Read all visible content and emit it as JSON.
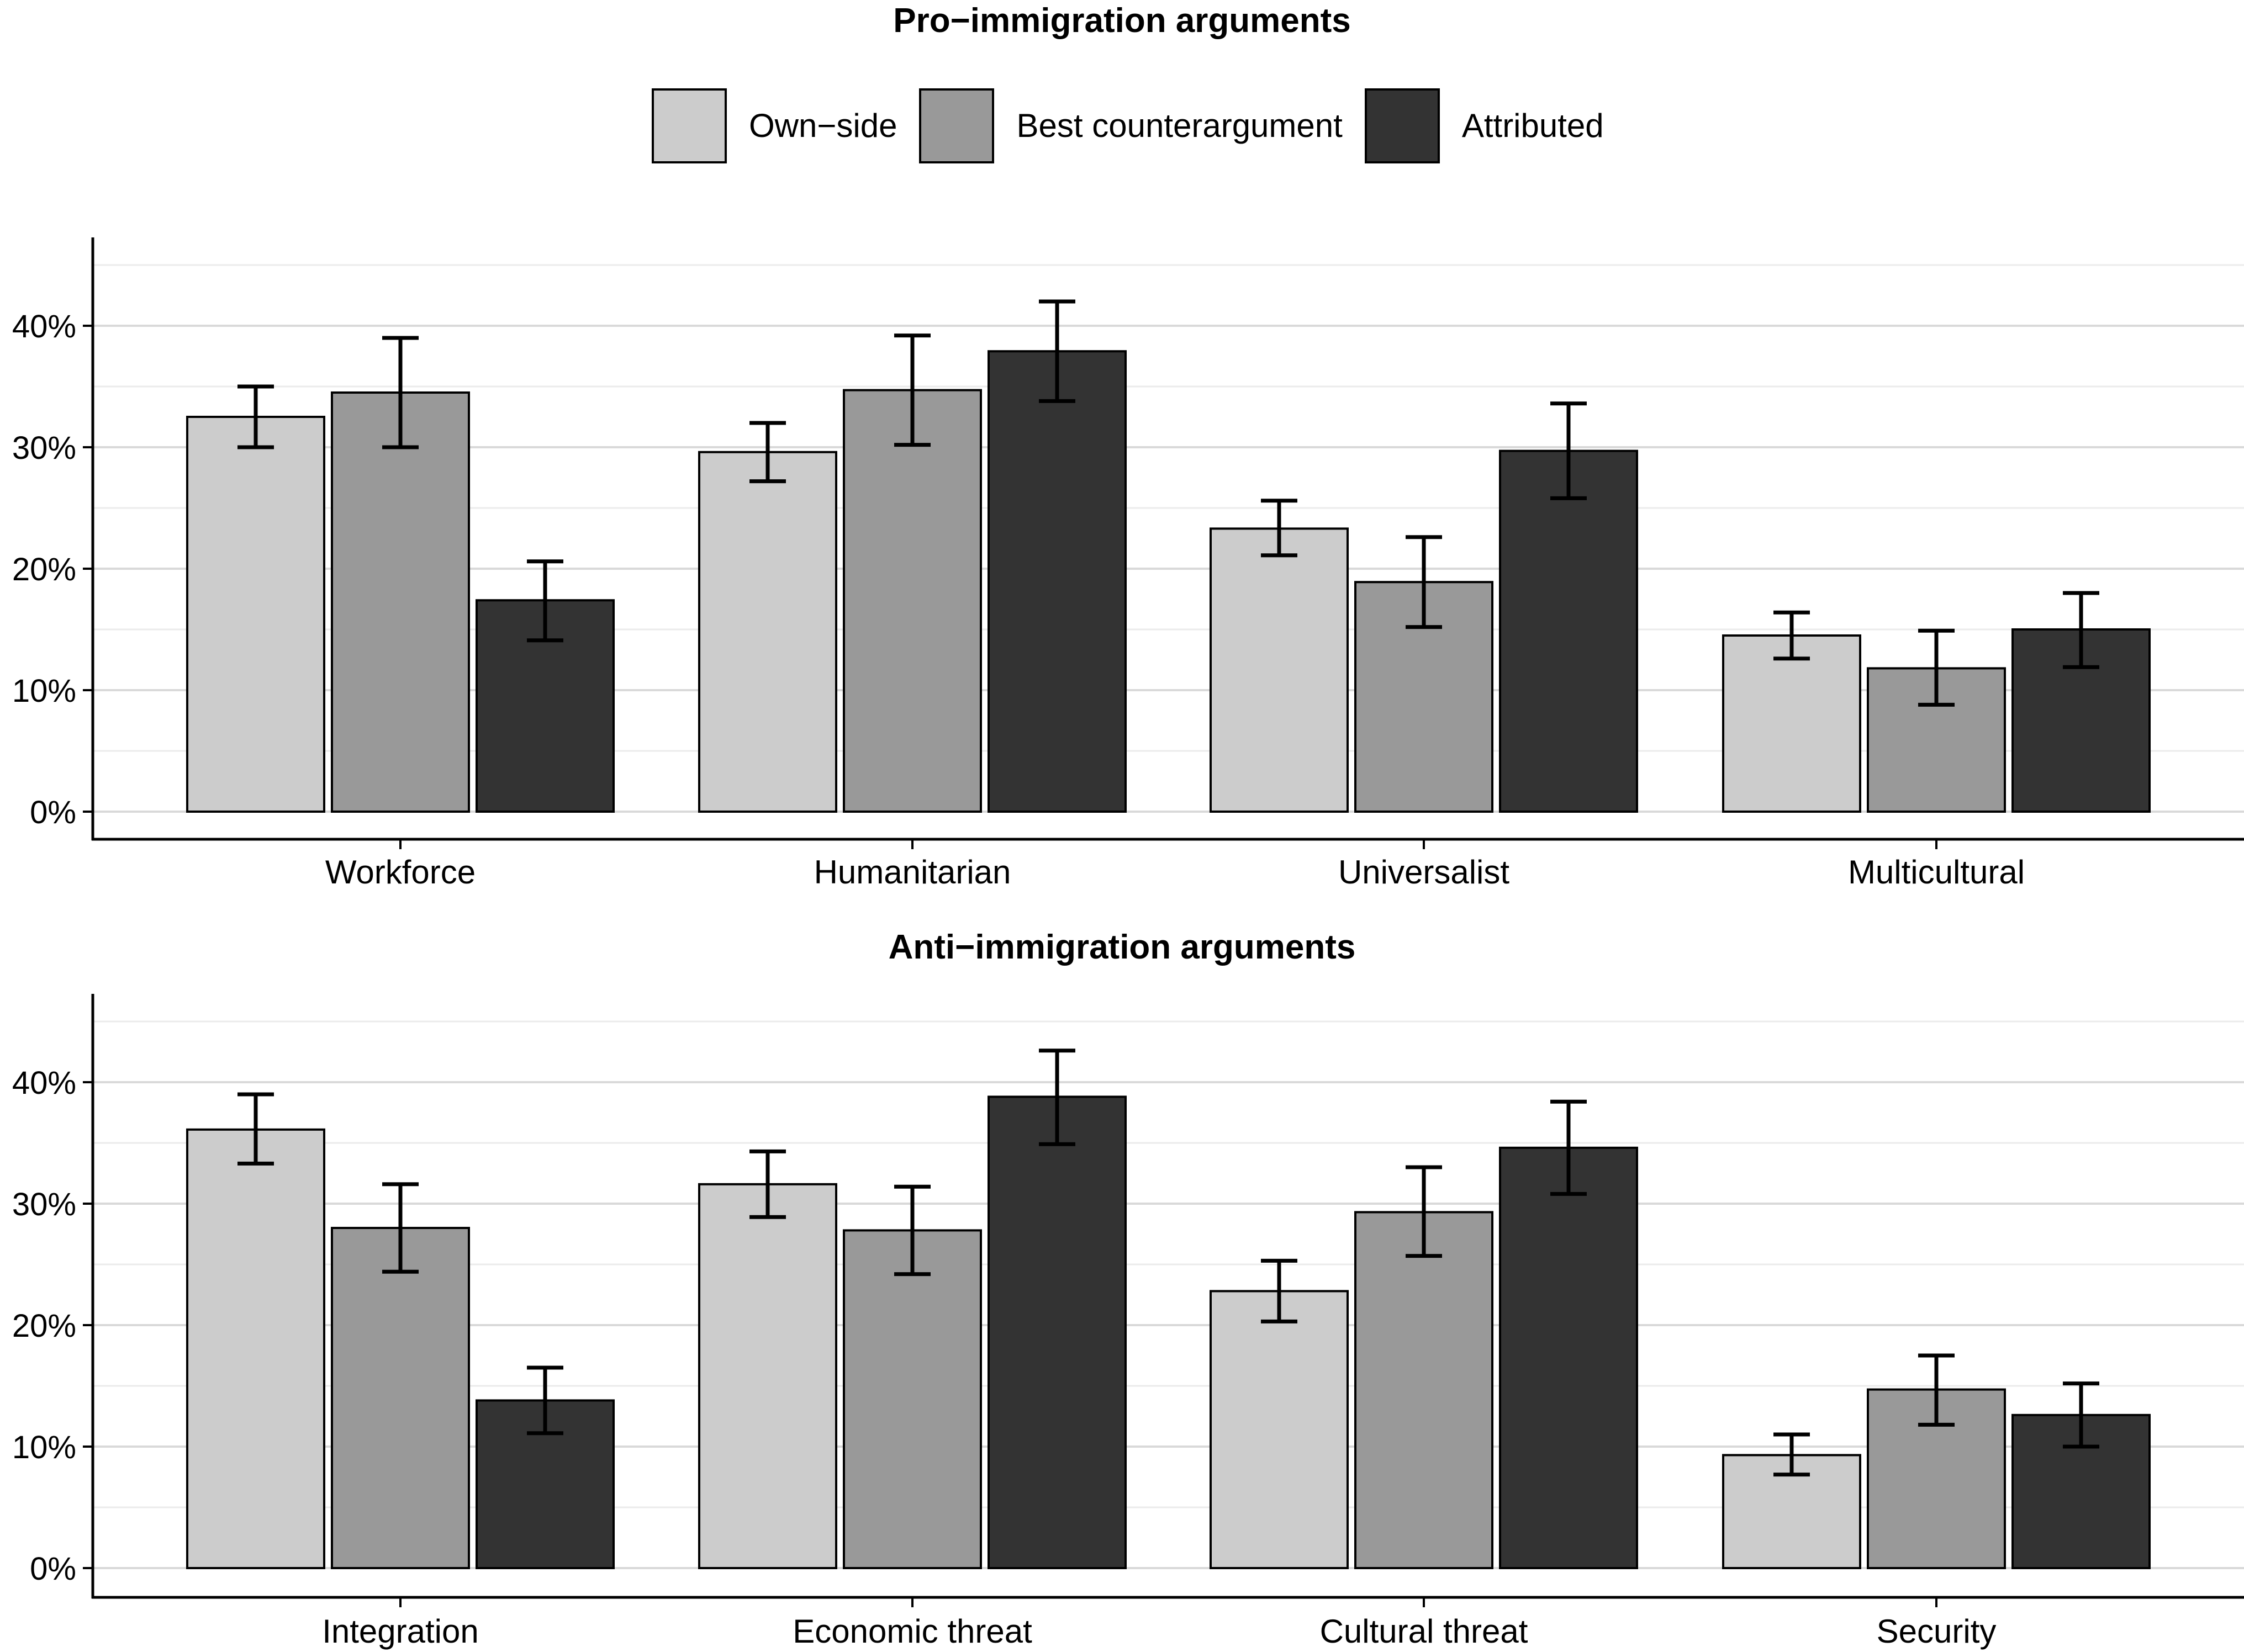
{
  "colors": {
    "own_side": "#cccccc",
    "best_counterargument": "#999999",
    "attributed": "#333333",
    "grid_major": "#d9d9d9",
    "grid_minor": "#ebebeb",
    "axis": "#000000"
  },
  "legend": {
    "items": [
      {
        "label": "Own−side",
        "color": "#cccccc"
      },
      {
        "label": "Best counterargument",
        "color": "#999999"
      },
      {
        "label": "Attributed",
        "color": "#333333"
      }
    ]
  },
  "chart_data": [
    {
      "type": "bar",
      "title": "Pro−immigration arguments",
      "xlabel": "",
      "ylabel": "",
      "ylim": [
        0,
        46
      ],
      "yticks": [
        "0%",
        "10%",
        "20%",
        "30%",
        "40%"
      ],
      "grid": true,
      "legend_position": "top",
      "categories": [
        "Workforce",
        "Humanitarian",
        "Universalist",
        "Multicultural"
      ],
      "series": [
        {
          "name": "Own−side",
          "values": [
            32.5,
            29.6,
            23.3,
            14.5
          ],
          "err_low": [
            30.0,
            27.2,
            21.1,
            12.6
          ],
          "err_high": [
            35.0,
            32.0,
            25.6,
            16.4
          ]
        },
        {
          "name": "Best counterargument",
          "values": [
            34.5,
            34.7,
            18.9,
            11.8
          ],
          "err_low": [
            30.0,
            30.2,
            15.2,
            8.8
          ],
          "err_high": [
            39.0,
            39.2,
            22.6,
            14.9
          ]
        },
        {
          "name": "Attributed",
          "values": [
            17.4,
            37.9,
            29.7,
            15.0
          ],
          "err_low": [
            14.1,
            33.8,
            25.8,
            11.9
          ],
          "err_high": [
            20.6,
            42.0,
            33.6,
            18.0
          ]
        }
      ]
    },
    {
      "type": "bar",
      "title": "Anti−immigration arguments",
      "xlabel": "",
      "ylabel": "",
      "ylim": [
        0,
        47
      ],
      "yticks": [
        "0%",
        "10%",
        "20%",
        "30%",
        "40%"
      ],
      "grid": true,
      "categories": [
        "Integration",
        "Economic threat",
        "Cultural threat",
        "Security"
      ],
      "series": [
        {
          "name": "Own−side",
          "values": [
            36.1,
            31.6,
            22.8,
            9.3
          ],
          "err_low": [
            33.3,
            28.9,
            20.3,
            7.7
          ],
          "err_high": [
            39.0,
            34.3,
            25.3,
            11.0
          ]
        },
        {
          "name": "Best counterargument",
          "values": [
            28.0,
            27.8,
            29.3,
            14.7
          ],
          "err_low": [
            24.4,
            24.2,
            25.7,
            11.8
          ],
          "err_high": [
            31.6,
            31.4,
            33.0,
            17.5
          ]
        },
        {
          "name": "Attributed",
          "values": [
            13.8,
            38.8,
            34.6,
            12.6
          ],
          "err_low": [
            11.1,
            34.9,
            30.8,
            10.0
          ],
          "err_high": [
            16.5,
            42.6,
            38.4,
            15.2
          ]
        }
      ]
    }
  ]
}
